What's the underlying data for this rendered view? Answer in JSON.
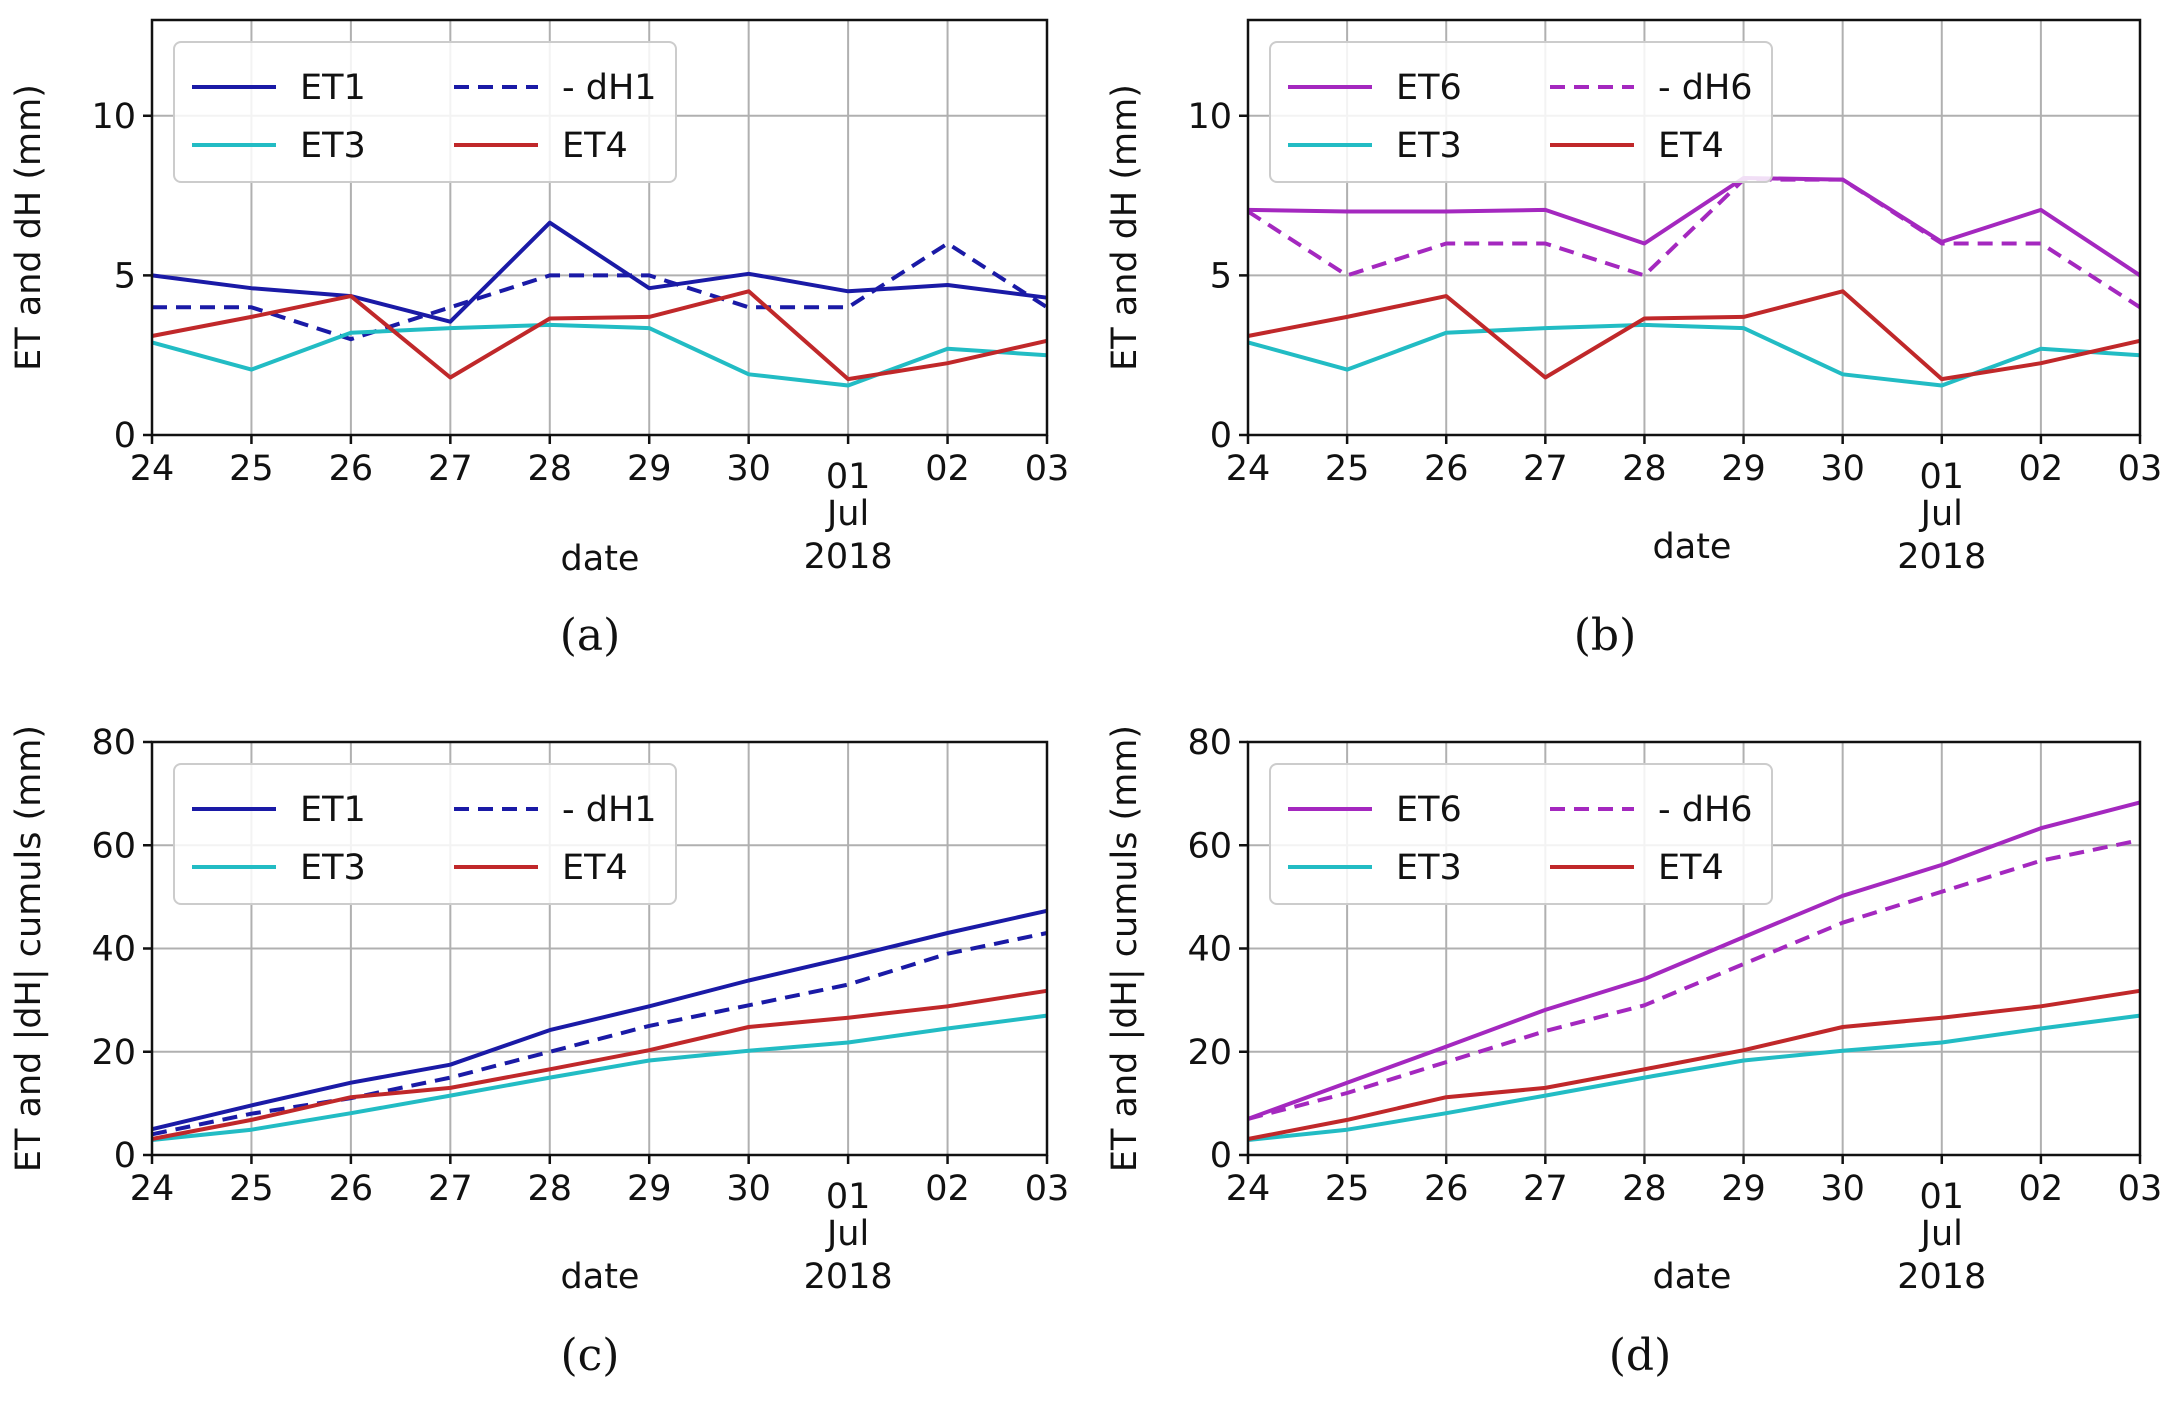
{
  "colors": {
    "ET1": "#1a1aa6",
    "ET3": "#22bcc4",
    "ET4": "#c0282a",
    "ET6": "#a428bf",
    "grid": "#b0b0b0",
    "axis": "#111111"
  },
  "chart_data": [
    {
      "type": "line",
      "panel_label": "(a)",
      "xlabel": "date",
      "ylabel": "ET and dH (mm)",
      "categories": [
        "24",
        "25",
        "26",
        "27",
        "28",
        "29",
        "30",
        "01",
        "02",
        "03"
      ],
      "month_label": "Jul",
      "year_label": "2018",
      "ylim": [
        0,
        13
      ],
      "yticks": [
        0,
        5,
        10
      ],
      "grid": true,
      "legend_position": "top-left",
      "series": [
        {
          "name": "ET1",
          "style": "solid",
          "color_key": "ET1",
          "values": [
            5.0,
            4.6,
            4.35,
            3.55,
            6.65,
            4.6,
            5.05,
            4.5,
            4.7,
            4.3
          ]
        },
        {
          "name": "- dH1",
          "style": "dashed",
          "color_key": "ET1",
          "values": [
            4.0,
            4.0,
            3.0,
            4.0,
            5.0,
            5.0,
            4.0,
            4.0,
            6.0,
            4.0
          ]
        },
        {
          "name": "ET3",
          "style": "solid",
          "color_key": "ET3",
          "values": [
            2.9,
            2.05,
            3.2,
            3.35,
            3.45,
            3.35,
            1.9,
            1.55,
            2.7,
            2.5
          ]
        },
        {
          "name": "ET4",
          "style": "solid",
          "color_key": "ET4",
          "values": [
            3.1,
            3.7,
            4.35,
            1.8,
            3.65,
            3.7,
            4.5,
            1.75,
            2.25,
            2.95
          ]
        }
      ]
    },
    {
      "type": "line",
      "panel_label": "(b)",
      "xlabel": "date",
      "ylabel": "ET and dH (mm)",
      "categories": [
        "24",
        "25",
        "26",
        "27",
        "28",
        "29",
        "30",
        "01",
        "02",
        "03"
      ],
      "month_label": "Jul",
      "year_label": "2018",
      "ylim": [
        0,
        13
      ],
      "yticks": [
        0,
        5,
        10
      ],
      "grid": true,
      "legend_position": "top-left",
      "series": [
        {
          "name": "ET6",
          "style": "solid",
          "color_key": "ET6",
          "values": [
            7.05,
            7.0,
            7.0,
            7.05,
            6.0,
            8.05,
            8.0,
            6.05,
            7.05,
            5.0
          ]
        },
        {
          "name": "- dH6",
          "style": "dashed",
          "color_key": "ET6",
          "values": [
            7.0,
            5.0,
            6.0,
            6.0,
            5.0,
            8.0,
            8.0,
            6.0,
            6.0,
            4.0
          ]
        },
        {
          "name": "ET3",
          "style": "solid",
          "color_key": "ET3",
          "values": [
            2.9,
            2.05,
            3.2,
            3.35,
            3.45,
            3.35,
            1.9,
            1.55,
            2.7,
            2.5
          ]
        },
        {
          "name": "ET4",
          "style": "solid",
          "color_key": "ET4",
          "values": [
            3.1,
            3.7,
            4.35,
            1.8,
            3.65,
            3.7,
            4.5,
            1.75,
            2.25,
            2.95
          ]
        }
      ]
    },
    {
      "type": "line",
      "panel_label": "(c)",
      "xlabel": "date",
      "ylabel": "ET and |dH| cumuls (mm)",
      "categories": [
        "24",
        "25",
        "26",
        "27",
        "28",
        "29",
        "30",
        "01",
        "02",
        "03"
      ],
      "month_label": "Jul",
      "year_label": "2018",
      "ylim": [
        0,
        80
      ],
      "yticks": [
        0,
        20,
        40,
        60,
        80
      ],
      "grid": true,
      "legend_position": "top-left",
      "series": [
        {
          "name": "ET1",
          "style": "solid",
          "color_key": "ET1",
          "values": [
            5.0,
            9.6,
            14.0,
            17.5,
            24.2,
            28.8,
            33.8,
            38.3,
            43.0,
            47.3
          ]
        },
        {
          "name": "- dH1",
          "style": "dashed",
          "color_key": "ET1",
          "values": [
            4.0,
            8.0,
            11.0,
            15.0,
            20.0,
            25.0,
            29.0,
            33.0,
            39.0,
            43.0
          ]
        },
        {
          "name": "ET3",
          "style": "solid",
          "color_key": "ET3",
          "values": [
            2.9,
            4.9,
            8.1,
            11.5,
            15.0,
            18.3,
            20.2,
            21.8,
            24.5,
            27.0
          ]
        },
        {
          "name": "ET4",
          "style": "solid",
          "color_key": "ET4",
          "values": [
            3.1,
            6.8,
            11.2,
            13.0,
            16.6,
            20.3,
            24.8,
            26.6,
            28.8,
            31.8
          ]
        }
      ]
    },
    {
      "type": "line",
      "panel_label": "(d)",
      "xlabel": "date",
      "ylabel": "ET and |dH| cumuls (mm)",
      "categories": [
        "24",
        "25",
        "26",
        "27",
        "28",
        "29",
        "30",
        "01",
        "02",
        "03"
      ],
      "month_label": "Jul",
      "year_label": "2018",
      "ylim": [
        0,
        80
      ],
      "yticks": [
        0,
        20,
        40,
        60,
        80
      ],
      "grid": true,
      "legend_position": "top-left",
      "series": [
        {
          "name": "ET6",
          "style": "solid",
          "color_key": "ET6",
          "values": [
            7.0,
            14.0,
            21.0,
            28.1,
            34.1,
            42.2,
            50.2,
            56.2,
            63.3,
            68.3
          ]
        },
        {
          "name": "- dH6",
          "style": "dashed",
          "color_key": "ET6",
          "values": [
            7.0,
            12.0,
            18.0,
            24.0,
            29.0,
            37.0,
            45.0,
            51.0,
            57.0,
            61.0
          ]
        },
        {
          "name": "ET3",
          "style": "solid",
          "color_key": "ET3",
          "values": [
            2.9,
            4.9,
            8.1,
            11.5,
            15.0,
            18.3,
            20.2,
            21.8,
            24.5,
            27.0
          ]
        },
        {
          "name": "ET4",
          "style": "solid",
          "color_key": "ET4",
          "values": [
            3.1,
            6.8,
            11.2,
            13.0,
            16.6,
            20.3,
            24.8,
            26.6,
            28.8,
            31.8
          ]
        }
      ]
    }
  ]
}
